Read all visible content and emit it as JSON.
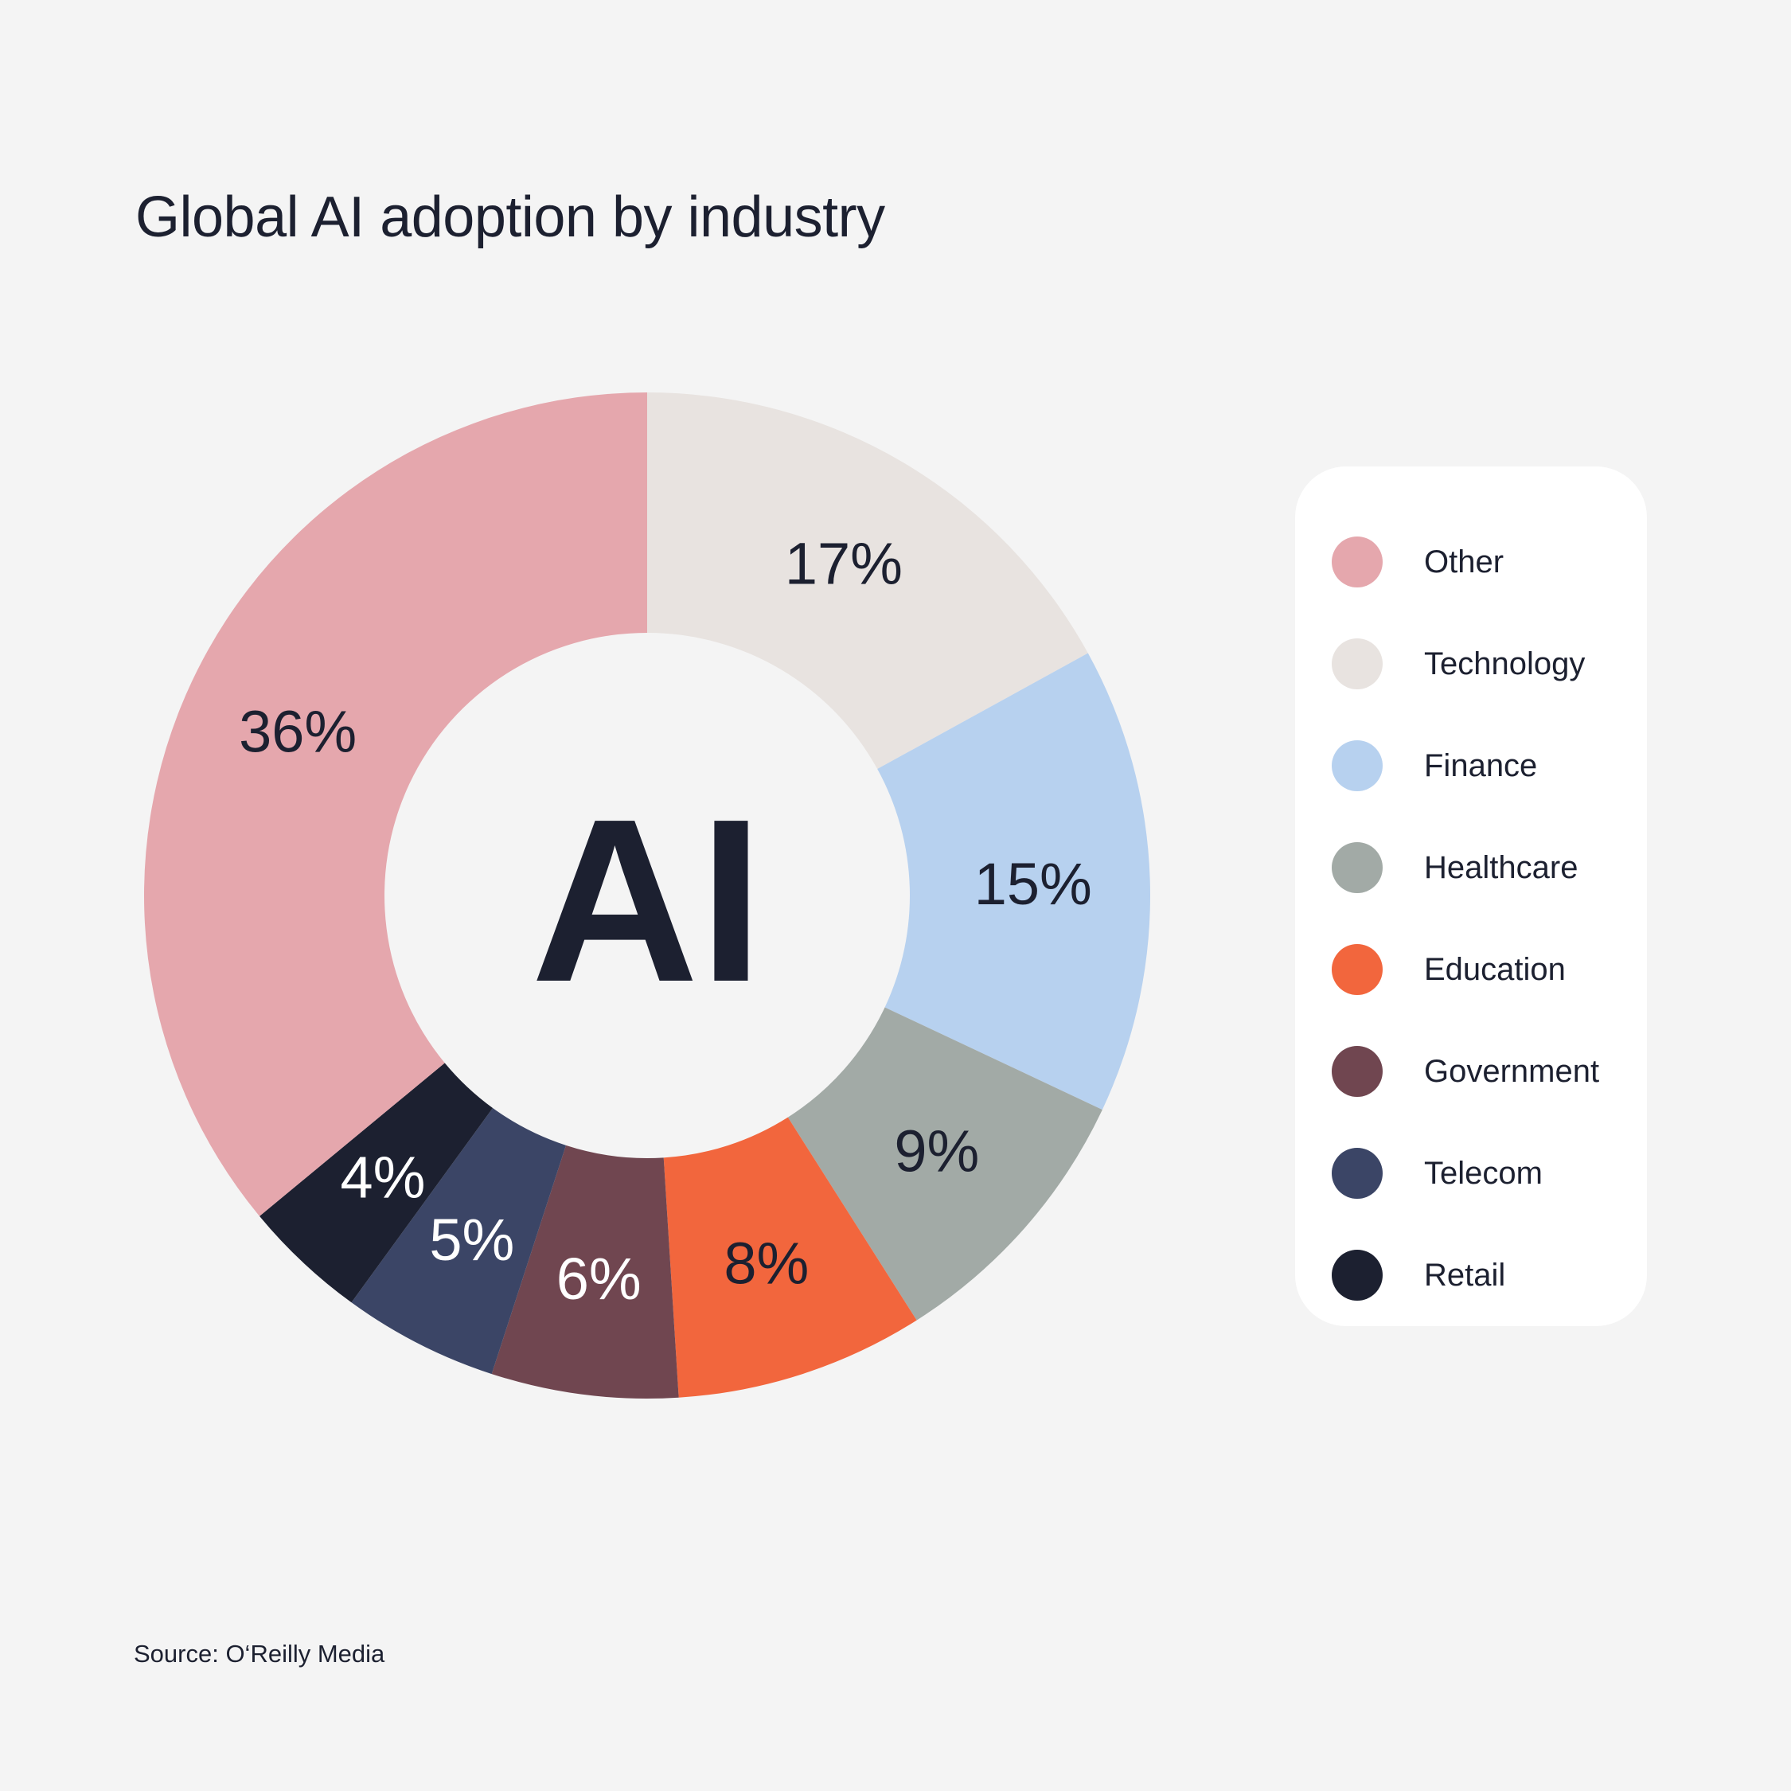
{
  "title": "Global AI adoption by industry",
  "center_text": "AI",
  "source": "Source: O‘Reilly Media",
  "chart_data": {
    "type": "pie",
    "donut": true,
    "title": "Global AI adoption by industry",
    "legend_position": "right",
    "slices": [
      {
        "label": "Technology",
        "value": 17,
        "display": "17%",
        "color": "#e8e3e0",
        "label_color": "#1c2030"
      },
      {
        "label": "Finance",
        "value": 15,
        "display": "15%",
        "color": "#b7d1ef",
        "label_color": "#1c2030"
      },
      {
        "label": "Healthcare",
        "value": 9,
        "display": "9%",
        "color": "#a2aaa6",
        "label_color": "#1c2030"
      },
      {
        "label": "Education",
        "value": 8,
        "display": "8%",
        "color": "#f2663d",
        "label_color": "#1c2030"
      },
      {
        "label": "Government",
        "value": 6,
        "display": "6%",
        "color": "#704650",
        "label_color": "#ffffff"
      },
      {
        "label": "Telecom",
        "value": 5,
        "display": "5%",
        "color": "#3b4566",
        "label_color": "#ffffff"
      },
      {
        "label": "Retail",
        "value": 4,
        "display": "4%",
        "color": "#1c2030",
        "label_color": "#ffffff"
      },
      {
        "label": "Other",
        "value": 36,
        "display": "36%",
        "color": "#e5a7ad",
        "label_color": "#1c2030"
      }
    ],
    "legend": [
      {
        "label": "Other",
        "color": "#e5a7ad"
      },
      {
        "label": "Technology",
        "color": "#e8e3e0"
      },
      {
        "label": "Finance",
        "color": "#b7d1ef"
      },
      {
        "label": "Healthcare",
        "color": "#a2aaa6"
      },
      {
        "label": "Education",
        "color": "#f2663d"
      },
      {
        "label": "Government",
        "color": "#704650"
      },
      {
        "label": "Telecom",
        "color": "#3b4566"
      },
      {
        "label": "Retail",
        "color": "#1c2030"
      }
    ]
  }
}
